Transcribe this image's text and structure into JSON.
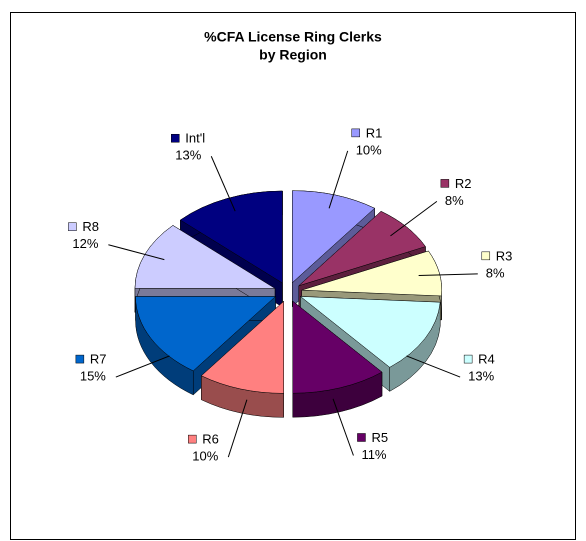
{
  "chart_data": {
    "type": "pie",
    "title": [
      "%CFA License Ring Clerks",
      "by Region"
    ],
    "categories": [
      "R1",
      "R2",
      "R3",
      "R4",
      "R5",
      "R6",
      "R7",
      "R8",
      "Int'l"
    ],
    "values": [
      10,
      8,
      8,
      13,
      11,
      10,
      15,
      12,
      13
    ],
    "value_labels": [
      "10%",
      "8%",
      "8%",
      "13%",
      "11%",
      "10%",
      "15%",
      "12%",
      "13%"
    ],
    "colors": [
      "#9999ff",
      "#993366",
      "#ffffcc",
      "#ccffff",
      "#660066",
      "#ff8080",
      "#0066cc",
      "#ccccff",
      "#000080"
    ]
  }
}
